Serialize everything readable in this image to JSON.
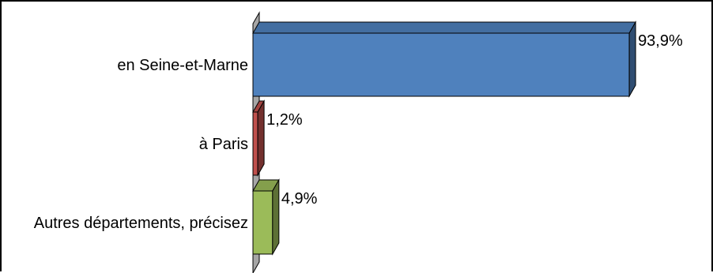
{
  "chart_data": {
    "type": "bar",
    "orientation": "horizontal",
    "style": "3d",
    "categories": [
      "en Seine-et-Marne",
      "à Paris",
      "Autres départements, précisez"
    ],
    "values": [
      93.9,
      1.2,
      4.9
    ],
    "value_labels": [
      "93,9%",
      "1,2%",
      "4,9%"
    ],
    "colors": [
      "#4f81bd",
      "#c0504d",
      "#9bbb59"
    ],
    "xlim": [
      0,
      100
    ],
    "grid": false,
    "legend": false
  }
}
